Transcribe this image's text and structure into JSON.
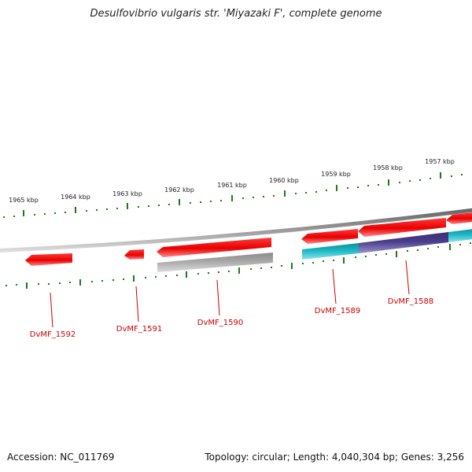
{
  "title": "Desulfovibrio vulgaris str. 'Miyazaki F', complete genome",
  "footer": {
    "accession": "Accession: NC_011769",
    "summary": "Topology: circular; Length: 4,040,304 bp; Genes: 3,256"
  },
  "ruler_labels": [
    "1965 kbp",
    "1964 kbp",
    "1963 kbp",
    "1962 kbp",
    "1961 kbp",
    "1960 kbp",
    "1959 kbp",
    "1958 kbp",
    "1957 kbp"
  ],
  "gene_labels": [
    "DvMF_1592",
    "DvMF_1591",
    "DvMF_1590",
    "DvMF_1589",
    "DvMF_1588"
  ],
  "colors": {
    "cds": "#ee1111",
    "backbone": "#888888",
    "ruler_tick": "#1a7a1a",
    "label": "#cc0000",
    "feature_cyan": "#1ab8c4",
    "feature_purple": "#4a3d8c",
    "feature_gray": "#b8b8b8"
  }
}
